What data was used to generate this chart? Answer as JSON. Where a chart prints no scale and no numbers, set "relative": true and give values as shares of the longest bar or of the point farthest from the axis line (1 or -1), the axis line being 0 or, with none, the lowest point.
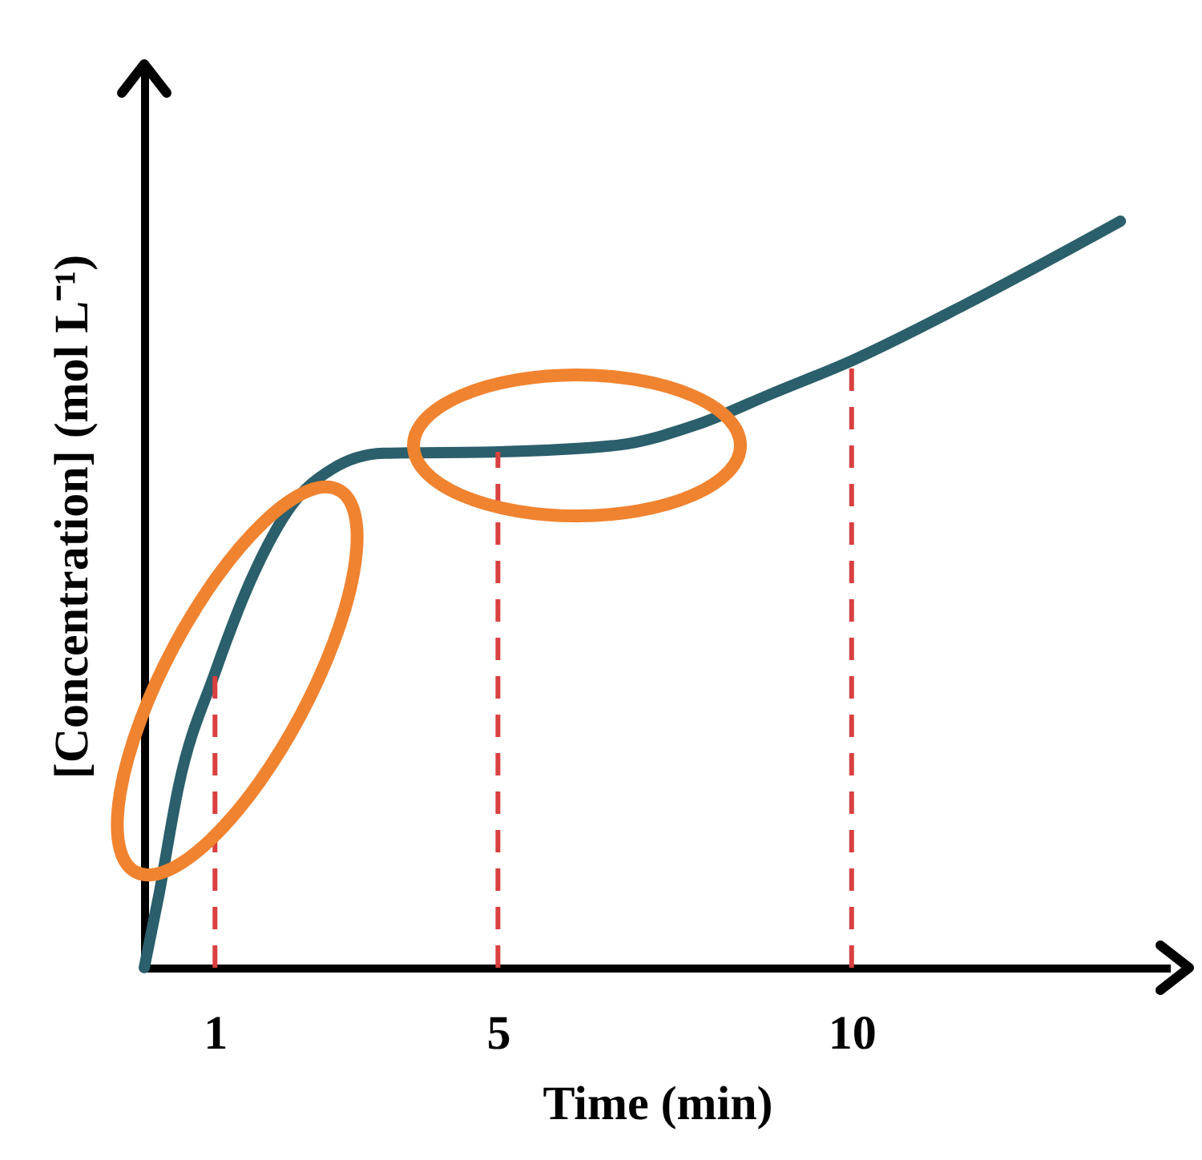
{
  "chart_data": {
    "type": "line",
    "xlabel": "Time (min)",
    "ylabel": "[Concentration] (mol L⁻¹)",
    "relative": true,
    "xlim": [
      0,
      14.5
    ],
    "xticks": [
      1,
      5,
      10
    ],
    "x": [
      0,
      0.2,
      0.49,
      1,
      1.53,
      2.09,
      2.64,
      3.38,
      5,
      6.7,
      7.8,
      8.9,
      10,
      11.6,
      13.8
    ],
    "series": [
      {
        "color": "#2a5f6b",
        "values": [
          0,
          0.094,
          0.245,
          0.395,
          0.524,
          0.62,
          0.667,
          0.689,
          0.691,
          0.7,
          0.727,
          0.77,
          0.813,
          0.888,
          1
        ]
      }
    ],
    "ref_lines": [
      {
        "axis": "x",
        "value": 1,
        "color": "#d94040",
        "line_style": "dashed"
      },
      {
        "axis": "x",
        "value": 5,
        "color": "#d94040",
        "line_style": "dashed"
      },
      {
        "axis": "x",
        "value": 10,
        "color": "#d94040",
        "line_style": "dashed"
      }
    ]
  }
}
